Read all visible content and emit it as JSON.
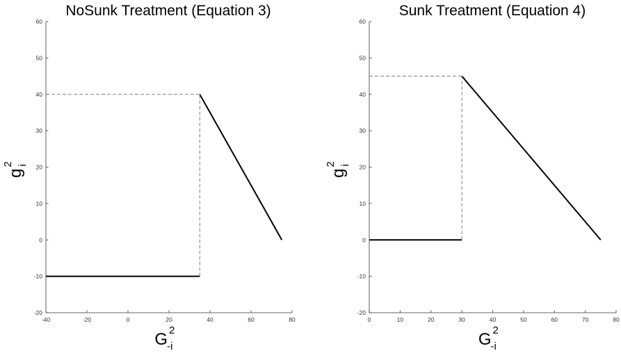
{
  "chart_data": [
    {
      "type": "line",
      "title": "NoSunk Treatment (Equation 3)",
      "xlabel": {
        "base": "G",
        "sup": "2",
        "sub": "-i"
      },
      "ylabel": {
        "base": "g",
        "sup": "2",
        "sub": "i"
      },
      "xlim": [
        -40,
        80
      ],
      "ylim": [
        -20,
        60
      ],
      "xticks": [
        -40,
        -20,
        0,
        20,
        40,
        60,
        80
      ],
      "yticks": [
        -20,
        -10,
        0,
        10,
        20,
        30,
        40,
        50,
        60
      ],
      "grid": false,
      "series": [
        {
          "style": "solid",
          "color": "#000000",
          "x": [
            -40,
            35
          ],
          "y": [
            -10,
            -10
          ]
        },
        {
          "style": "solid",
          "color": "#000000",
          "x": [
            35,
            75
          ],
          "y": [
            40,
            0
          ]
        },
        {
          "style": "dashed",
          "color": "#7f7f7f",
          "x": [
            -40,
            35
          ],
          "y": [
            40,
            40
          ]
        },
        {
          "style": "dashed",
          "color": "#7f7f7f",
          "x": [
            35,
            35
          ],
          "y": [
            -10,
            40
          ]
        }
      ]
    },
    {
      "type": "line",
      "title": "Sunk Treatment (Equation 4)",
      "xlabel": {
        "base": "G",
        "sup": "2",
        "sub": "-i"
      },
      "ylabel": {
        "base": "g",
        "sup": "2",
        "sub": "i"
      },
      "xlim": [
        0,
        80
      ],
      "ylim": [
        -20,
        60
      ],
      "xticks": [
        0,
        10,
        20,
        30,
        40,
        50,
        60,
        70,
        80
      ],
      "yticks": [
        -20,
        -10,
        0,
        10,
        20,
        30,
        40,
        50,
        60
      ],
      "grid": false,
      "series": [
        {
          "style": "solid",
          "color": "#000000",
          "x": [
            0,
            30
          ],
          "y": [
            0,
            0
          ]
        },
        {
          "style": "solid",
          "color": "#000000",
          "x": [
            30,
            75
          ],
          "y": [
            45,
            0
          ]
        },
        {
          "style": "dashed",
          "color": "#7f7f7f",
          "x": [
            0,
            30
          ],
          "y": [
            45,
            45
          ]
        },
        {
          "style": "dashed",
          "color": "#7f7f7f",
          "x": [
            30,
            30
          ],
          "y": [
            0,
            45
          ]
        }
      ]
    }
  ]
}
